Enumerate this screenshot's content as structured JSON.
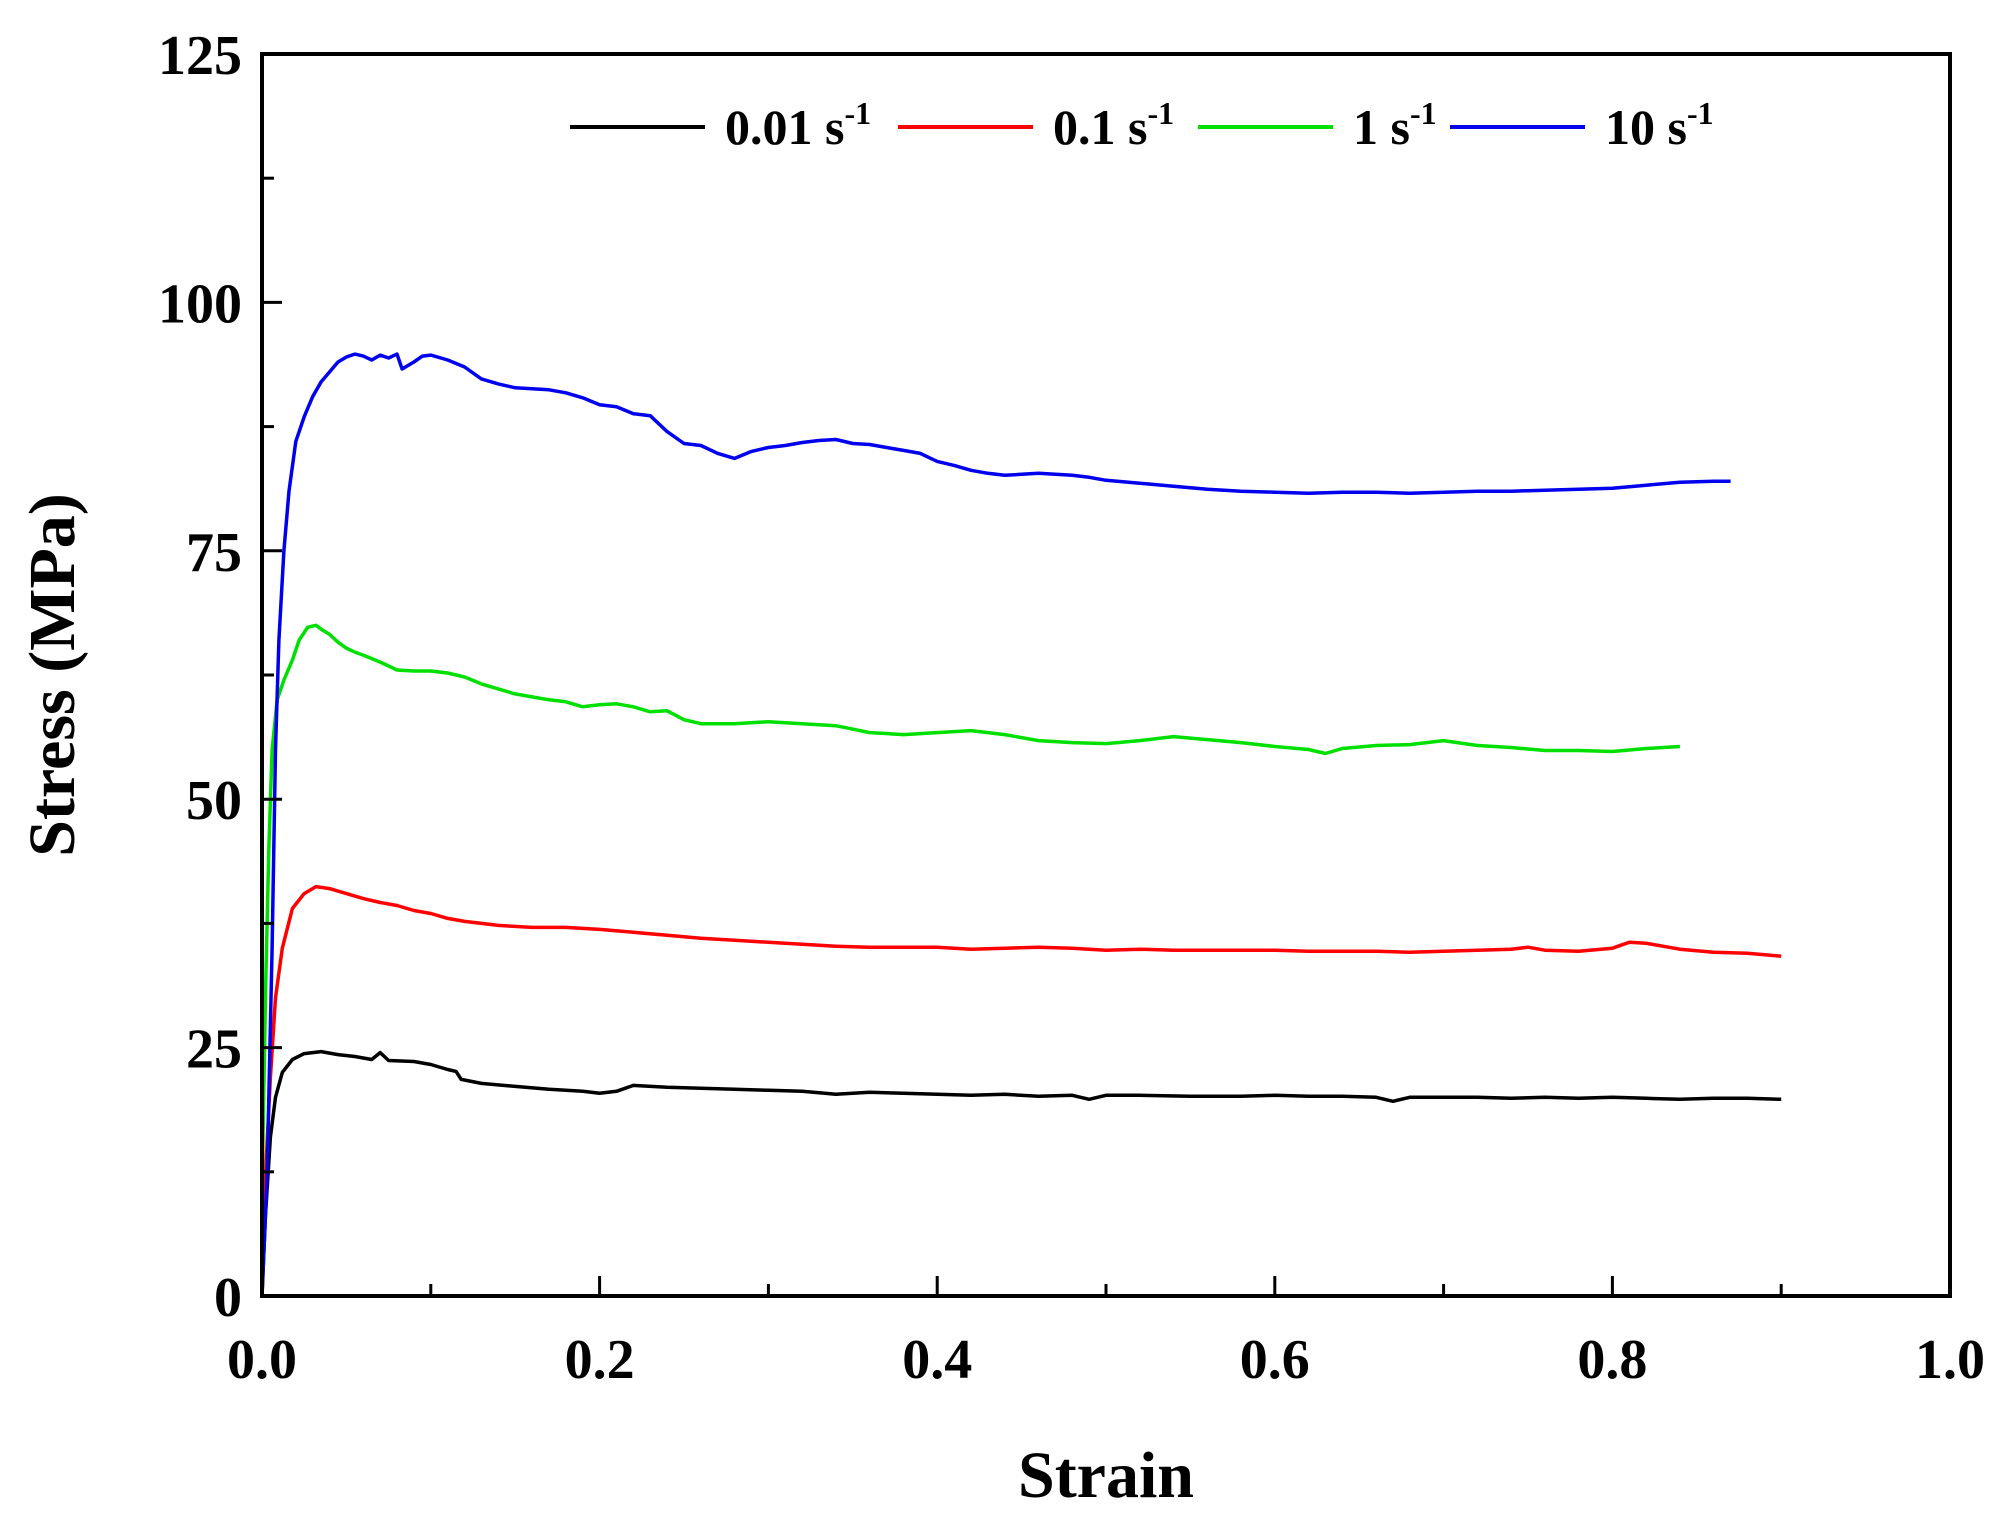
{
  "chart_data": {
    "type": "line",
    "xlabel": "Strain",
    "ylabel": "Stress (MPa)",
    "xlim": [
      0.0,
      1.0
    ],
    "ylim": [
      0,
      125
    ],
    "x_ticks": [
      "0.0",
      "0.2",
      "0.4",
      "0.6",
      "0.8",
      "1.0"
    ],
    "y_ticks": [
      "0",
      "25",
      "50",
      "75",
      "100",
      "125"
    ],
    "grid": false,
    "legend_position": "top-right",
    "series": [
      {
        "name": "0.01 s",
        "name_sup": "-1",
        "color": "#000000",
        "points": [
          [
            0.0,
            0
          ],
          [
            0.002,
            8
          ],
          [
            0.005,
            16
          ],
          [
            0.008,
            20
          ],
          [
            0.012,
            22.5
          ],
          [
            0.018,
            23.8
          ],
          [
            0.025,
            24.4
          ],
          [
            0.035,
            24.6
          ],
          [
            0.045,
            24.3
          ],
          [
            0.055,
            24.1
          ],
          [
            0.065,
            23.8
          ],
          [
            0.07,
            24.5
          ],
          [
            0.075,
            23.7
          ],
          [
            0.09,
            23.6
          ],
          [
            0.1,
            23.3
          ],
          [
            0.11,
            22.8
          ],
          [
            0.115,
            22.6
          ],
          [
            0.118,
            21.8
          ],
          [
            0.13,
            21.4
          ],
          [
            0.15,
            21.1
          ],
          [
            0.17,
            20.8
          ],
          [
            0.19,
            20.6
          ],
          [
            0.2,
            20.4
          ],
          [
            0.21,
            20.6
          ],
          [
            0.22,
            21.2
          ],
          [
            0.24,
            21.0
          ],
          [
            0.26,
            20.9
          ],
          [
            0.28,
            20.8
          ],
          [
            0.3,
            20.7
          ],
          [
            0.32,
            20.6
          ],
          [
            0.34,
            20.3
          ],
          [
            0.36,
            20.5
          ],
          [
            0.38,
            20.4
          ],
          [
            0.4,
            20.3
          ],
          [
            0.42,
            20.2
          ],
          [
            0.44,
            20.3
          ],
          [
            0.46,
            20.1
          ],
          [
            0.48,
            20.2
          ],
          [
            0.49,
            19.8
          ],
          [
            0.5,
            20.2
          ],
          [
            0.52,
            20.2
          ],
          [
            0.55,
            20.1
          ],
          [
            0.58,
            20.1
          ],
          [
            0.6,
            20.2
          ],
          [
            0.62,
            20.1
          ],
          [
            0.64,
            20.1
          ],
          [
            0.66,
            20.0
          ],
          [
            0.67,
            19.6
          ],
          [
            0.68,
            20.0
          ],
          [
            0.7,
            20.0
          ],
          [
            0.72,
            20.0
          ],
          [
            0.74,
            19.9
          ],
          [
            0.76,
            20.0
          ],
          [
            0.78,
            19.9
          ],
          [
            0.8,
            20.0
          ],
          [
            0.82,
            19.9
          ],
          [
            0.84,
            19.8
          ],
          [
            0.86,
            19.9
          ],
          [
            0.88,
            19.9
          ],
          [
            0.9,
            19.8
          ]
        ]
      },
      {
        "name": "0.1 s",
        "name_sup": "-1",
        "color": "#ff0000",
        "points": [
          [
            0.0,
            4
          ],
          [
            0.002,
            12
          ],
          [
            0.005,
            22
          ],
          [
            0.008,
            30
          ],
          [
            0.012,
            35
          ],
          [
            0.018,
            39
          ],
          [
            0.025,
            40.5
          ],
          [
            0.032,
            41.2
          ],
          [
            0.04,
            41.0
          ],
          [
            0.05,
            40.5
          ],
          [
            0.06,
            40.0
          ],
          [
            0.07,
            39.6
          ],
          [
            0.08,
            39.3
          ],
          [
            0.09,
            38.8
          ],
          [
            0.1,
            38.5
          ],
          [
            0.11,
            38.0
          ],
          [
            0.12,
            37.7
          ],
          [
            0.14,
            37.3
          ],
          [
            0.16,
            37.1
          ],
          [
            0.18,
            37.1
          ],
          [
            0.2,
            36.9
          ],
          [
            0.22,
            36.6
          ],
          [
            0.24,
            36.3
          ],
          [
            0.26,
            36.0
          ],
          [
            0.28,
            35.8
          ],
          [
            0.3,
            35.6
          ],
          [
            0.32,
            35.4
          ],
          [
            0.34,
            35.2
          ],
          [
            0.36,
            35.1
          ],
          [
            0.38,
            35.1
          ],
          [
            0.4,
            35.1
          ],
          [
            0.42,
            34.9
          ],
          [
            0.44,
            35.0
          ],
          [
            0.46,
            35.1
          ],
          [
            0.48,
            35.0
          ],
          [
            0.5,
            34.8
          ],
          [
            0.52,
            34.9
          ],
          [
            0.54,
            34.8
          ],
          [
            0.56,
            34.8
          ],
          [
            0.58,
            34.8
          ],
          [
            0.6,
            34.8
          ],
          [
            0.62,
            34.7
          ],
          [
            0.64,
            34.7
          ],
          [
            0.66,
            34.7
          ],
          [
            0.68,
            34.6
          ],
          [
            0.7,
            34.7
          ],
          [
            0.72,
            34.8
          ],
          [
            0.74,
            34.9
          ],
          [
            0.75,
            35.1
          ],
          [
            0.76,
            34.8
          ],
          [
            0.78,
            34.7
          ],
          [
            0.8,
            35.0
          ],
          [
            0.81,
            35.6
          ],
          [
            0.82,
            35.5
          ],
          [
            0.84,
            34.9
          ],
          [
            0.86,
            34.6
          ],
          [
            0.88,
            34.5
          ],
          [
            0.9,
            34.2
          ]
        ]
      },
      {
        "name": "1 s",
        "name_sup": "-1",
        "color": "#00e000",
        "points": [
          [
            0.0,
            10
          ],
          [
            0.002,
            30
          ],
          [
            0.004,
            45
          ],
          [
            0.006,
            55
          ],
          [
            0.009,
            60
          ],
          [
            0.013,
            62
          ],
          [
            0.018,
            64
          ],
          [
            0.022,
            66
          ],
          [
            0.027,
            67.3
          ],
          [
            0.032,
            67.5
          ],
          [
            0.036,
            67.0
          ],
          [
            0.04,
            66.6
          ],
          [
            0.045,
            65.8
          ],
          [
            0.05,
            65.2
          ],
          [
            0.055,
            64.8
          ],
          [
            0.06,
            64.5
          ],
          [
            0.07,
            63.8
          ],
          [
            0.08,
            63.0
          ],
          [
            0.09,
            62.9
          ],
          [
            0.1,
            62.9
          ],
          [
            0.11,
            62.7
          ],
          [
            0.12,
            62.3
          ],
          [
            0.13,
            61.6
          ],
          [
            0.14,
            61.1
          ],
          [
            0.15,
            60.6
          ],
          [
            0.16,
            60.3
          ],
          [
            0.17,
            60.0
          ],
          [
            0.18,
            59.8
          ],
          [
            0.19,
            59.3
          ],
          [
            0.2,
            59.5
          ],
          [
            0.21,
            59.6
          ],
          [
            0.22,
            59.3
          ],
          [
            0.23,
            58.8
          ],
          [
            0.24,
            58.9
          ],
          [
            0.25,
            58.0
          ],
          [
            0.26,
            57.6
          ],
          [
            0.28,
            57.6
          ],
          [
            0.3,
            57.8
          ],
          [
            0.32,
            57.6
          ],
          [
            0.34,
            57.4
          ],
          [
            0.36,
            56.7
          ],
          [
            0.38,
            56.5
          ],
          [
            0.4,
            56.7
          ],
          [
            0.42,
            56.9
          ],
          [
            0.44,
            56.5
          ],
          [
            0.46,
            55.9
          ],
          [
            0.48,
            55.7
          ],
          [
            0.5,
            55.6
          ],
          [
            0.52,
            55.9
          ],
          [
            0.54,
            56.3
          ],
          [
            0.56,
            56.0
          ],
          [
            0.58,
            55.7
          ],
          [
            0.6,
            55.3
          ],
          [
            0.62,
            55.0
          ],
          [
            0.63,
            54.6
          ],
          [
            0.64,
            55.1
          ],
          [
            0.66,
            55.4
          ],
          [
            0.68,
            55.5
          ],
          [
            0.7,
            55.9
          ],
          [
            0.72,
            55.4
          ],
          [
            0.74,
            55.2
          ],
          [
            0.76,
            54.9
          ],
          [
            0.78,
            54.9
          ],
          [
            0.8,
            54.8
          ],
          [
            0.82,
            55.1
          ],
          [
            0.84,
            55.3
          ]
        ]
      },
      {
        "name": "10 s",
        "name_sup": "-1",
        "color": "#0000ee",
        "points": [
          [
            0.0,
            0
          ],
          [
            0.003,
            12
          ],
          [
            0.006,
            35
          ],
          [
            0.008,
            55
          ],
          [
            0.01,
            66
          ],
          [
            0.013,
            75
          ],
          [
            0.016,
            81
          ],
          [
            0.02,
            86
          ],
          [
            0.025,
            88.5
          ],
          [
            0.03,
            90.5
          ],
          [
            0.035,
            92
          ],
          [
            0.04,
            93
          ],
          [
            0.045,
            94
          ],
          [
            0.05,
            94.5
          ],
          [
            0.055,
            94.8
          ],
          [
            0.06,
            94.6
          ],
          [
            0.065,
            94.2
          ],
          [
            0.07,
            94.7
          ],
          [
            0.075,
            94.4
          ],
          [
            0.08,
            94.8
          ],
          [
            0.083,
            93.3
          ],
          [
            0.09,
            94.0
          ],
          [
            0.095,
            94.6
          ],
          [
            0.1,
            94.7
          ],
          [
            0.11,
            94.2
          ],
          [
            0.12,
            93.5
          ],
          [
            0.13,
            92.3
          ],
          [
            0.14,
            91.8
          ],
          [
            0.15,
            91.4
          ],
          [
            0.16,
            91.3
          ],
          [
            0.17,
            91.2
          ],
          [
            0.18,
            90.9
          ],
          [
            0.19,
            90.4
          ],
          [
            0.2,
            89.7
          ],
          [
            0.21,
            89.5
          ],
          [
            0.22,
            88.8
          ],
          [
            0.23,
            88.6
          ],
          [
            0.24,
            87.0
          ],
          [
            0.25,
            85.8
          ],
          [
            0.26,
            85.6
          ],
          [
            0.27,
            84.8
          ],
          [
            0.28,
            84.3
          ],
          [
            0.29,
            85.0
          ],
          [
            0.3,
            85.4
          ],
          [
            0.31,
            85.6
          ],
          [
            0.32,
            85.9
          ],
          [
            0.33,
            86.1
          ],
          [
            0.34,
            86.2
          ],
          [
            0.35,
            85.8
          ],
          [
            0.36,
            85.7
          ],
          [
            0.37,
            85.4
          ],
          [
            0.38,
            85.1
          ],
          [
            0.39,
            84.8
          ],
          [
            0.4,
            84.0
          ],
          [
            0.41,
            83.6
          ],
          [
            0.42,
            83.1
          ],
          [
            0.43,
            82.8
          ],
          [
            0.44,
            82.6
          ],
          [
            0.45,
            82.7
          ],
          [
            0.46,
            82.8
          ],
          [
            0.47,
            82.7
          ],
          [
            0.48,
            82.6
          ],
          [
            0.49,
            82.4
          ],
          [
            0.5,
            82.1
          ],
          [
            0.52,
            81.8
          ],
          [
            0.54,
            81.5
          ],
          [
            0.56,
            81.2
          ],
          [
            0.58,
            81.0
          ],
          [
            0.6,
            80.9
          ],
          [
            0.62,
            80.8
          ],
          [
            0.64,
            80.9
          ],
          [
            0.66,
            80.9
          ],
          [
            0.68,
            80.8
          ],
          [
            0.7,
            80.9
          ],
          [
            0.72,
            81.0
          ],
          [
            0.74,
            81.0
          ],
          [
            0.76,
            81.1
          ],
          [
            0.78,
            81.2
          ],
          [
            0.8,
            81.3
          ],
          [
            0.82,
            81.6
          ],
          [
            0.84,
            81.9
          ],
          [
            0.86,
            82.0
          ],
          [
            0.87,
            82.0
          ]
        ]
      }
    ]
  }
}
